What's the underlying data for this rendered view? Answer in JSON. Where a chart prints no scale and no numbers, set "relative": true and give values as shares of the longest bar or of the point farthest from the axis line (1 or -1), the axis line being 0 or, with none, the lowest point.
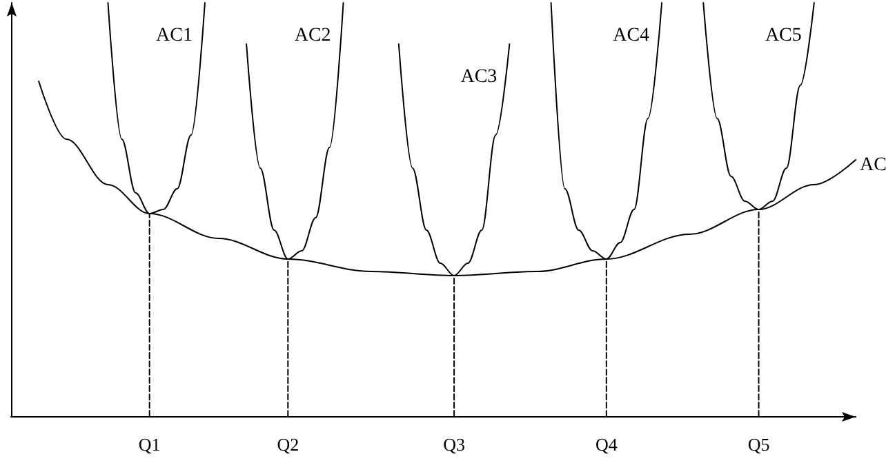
{
  "chart_data": {
    "type": "line",
    "relative": true,
    "marker": "none",
    "legend": false,
    "grid": false,
    "categories": [
      null,
      null,
      null,
      null,
      null,
      null,
      null,
      null,
      null,
      null,
      "Q1",
      null,
      null,
      null,
      null,
      null,
      null,
      null,
      null,
      null,
      "Q2",
      null,
      null,
      null,
      null,
      null,
      null,
      null,
      null,
      null,
      null,
      null,
      "Q3",
      null,
      null,
      null,
      null,
      null,
      null,
      null,
      null,
      null,
      null,
      "Q4",
      null,
      null,
      null,
      null,
      null,
      null,
      null,
      null,
      null,
      null,
      "Q5",
      null,
      null,
      null,
      null,
      null,
      null,
      null
    ],
    "series": [
      {
        "name": "AC",
        "color": "#000000",
        "values": [
          null,
          null,
          0.81,
          null,
          0.67,
          null,
          null,
          0.56,
          null,
          null,
          0.49,
          null,
          null,
          null,
          null,
          0.43,
          null,
          null,
          null,
          null,
          0.38,
          null,
          null,
          null,
          null,
          null,
          0.35,
          null,
          null,
          null,
          null,
          null,
          0.34,
          null,
          null,
          null,
          null,
          null,
          0.35,
          null,
          null,
          null,
          null,
          0.38,
          null,
          null,
          null,
          null,
          null,
          0.44,
          null,
          null,
          null,
          null,
          0.5,
          null,
          null,
          null,
          0.56,
          null,
          null,
          0.62
        ]
      },
      {
        "name": "AC1",
        "color": "#000000",
        "values": [
          null,
          null,
          null,
          null,
          null,
          null,
          null,
          1,
          0.67,
          0.54,
          0.49,
          0.5,
          0.55,
          0.68,
          1,
          null,
          null,
          null,
          null,
          null,
          null,
          null,
          null,
          null,
          null,
          null,
          null,
          null,
          null,
          null,
          null,
          null,
          null,
          null,
          null,
          null,
          null,
          null,
          null,
          null,
          null,
          null,
          null,
          null,
          null,
          null,
          null,
          null,
          null,
          null,
          null,
          null,
          null,
          null,
          null,
          null,
          null,
          null,
          null,
          null,
          null,
          null
        ]
      },
      {
        "name": "AC2",
        "color": "#000000",
        "values": [
          null,
          null,
          null,
          null,
          null,
          null,
          null,
          null,
          null,
          null,
          null,
          null,
          null,
          null,
          null,
          null,
          null,
          0.9,
          0.6,
          0.45,
          0.38,
          0.4,
          0.48,
          0.65,
          1,
          null,
          null,
          null,
          null,
          null,
          null,
          null,
          null,
          null,
          null,
          null,
          null,
          null,
          null,
          null,
          null,
          null,
          null,
          null,
          null,
          null,
          null,
          null,
          null,
          null,
          null,
          null,
          null,
          null,
          null,
          null,
          null,
          null,
          null,
          null,
          null,
          null
        ]
      },
      {
        "name": "AC3",
        "color": "#000000",
        "values": [
          null,
          null,
          null,
          null,
          null,
          null,
          null,
          null,
          null,
          null,
          null,
          null,
          null,
          null,
          null,
          null,
          null,
          null,
          null,
          null,
          null,
          null,
          null,
          null,
          null,
          null,
          null,
          null,
          0.9,
          0.6,
          0.45,
          0.37,
          0.34,
          0.37,
          0.45,
          0.68,
          0.9,
          null,
          null,
          null,
          null,
          null,
          null,
          null,
          null,
          null,
          null,
          null,
          null,
          null,
          null,
          null,
          null,
          null,
          null,
          null,
          null,
          null,
          null,
          null,
          null,
          null
        ]
      },
      {
        "name": "AC4",
        "color": "#000000",
        "values": [
          null,
          null,
          null,
          null,
          null,
          null,
          null,
          null,
          null,
          null,
          null,
          null,
          null,
          null,
          null,
          null,
          null,
          null,
          null,
          null,
          null,
          null,
          null,
          null,
          null,
          null,
          null,
          null,
          null,
          null,
          null,
          null,
          null,
          null,
          null,
          null,
          null,
          null,
          null,
          1,
          0.55,
          0.45,
          0.4,
          0.38,
          0.42,
          0.5,
          0.72,
          1,
          null,
          null,
          null,
          null,
          null,
          null,
          null,
          null,
          null,
          null,
          null,
          null,
          null,
          null
        ]
      },
      {
        "name": "AC5",
        "color": "#000000",
        "values": [
          null,
          null,
          null,
          null,
          null,
          null,
          null,
          null,
          null,
          null,
          null,
          null,
          null,
          null,
          null,
          null,
          null,
          null,
          null,
          null,
          null,
          null,
          null,
          null,
          null,
          null,
          null,
          null,
          null,
          null,
          null,
          null,
          null,
          null,
          null,
          null,
          null,
          null,
          null,
          null,
          null,
          null,
          null,
          null,
          null,
          null,
          null,
          null,
          null,
          null,
          1,
          0.72,
          0.58,
          0.52,
          0.5,
          0.52,
          0.6,
          0.8,
          1,
          null,
          null,
          null
        ]
      },
      {
        "color": "#000000",
        "line_style": "dashed",
        "x": [
          "Q1",
          "Q1"
        ],
        "values": [
          0,
          0.49
        ]
      },
      {
        "color": "#000000",
        "line_style": "dashed",
        "x": [
          "Q2",
          "Q2"
        ],
        "values": [
          0,
          0.38
        ]
      },
      {
        "color": "#000000",
        "line_style": "dashed",
        "x": [
          "Q3",
          "Q3"
        ],
        "values": [
          0,
          0.34
        ]
      },
      {
        "color": "#000000",
        "line_style": "dashed",
        "x": [
          "Q4",
          "Q4"
        ],
        "values": [
          0,
          0.38
        ]
      },
      {
        "color": "#000000",
        "line_style": "dashed",
        "x": [
          "Q5",
          "Q5"
        ],
        "values": [
          0,
          0.5
        ]
      }
    ]
  }
}
